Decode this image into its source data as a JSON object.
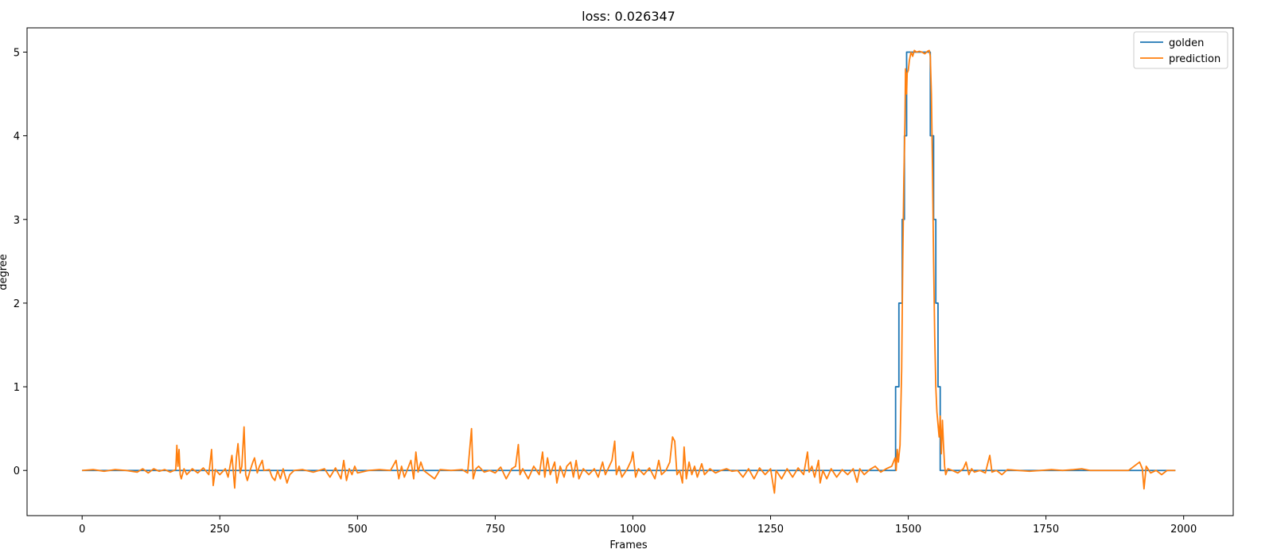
{
  "chart_data": {
    "type": "line",
    "title": "loss: 0.026347",
    "xlabel": "Frames",
    "ylabel": "degree",
    "xlim": [
      -100,
      2090
    ],
    "ylim": [
      -0.54,
      5.29
    ],
    "xticks": [
      0,
      250,
      500,
      750,
      1000,
      1250,
      1500,
      1750,
      2000
    ],
    "yticks": [
      0,
      1,
      2,
      3,
      4,
      5
    ],
    "grid": false,
    "legend_position": "top-right",
    "series": [
      {
        "name": "golden",
        "color": "#1f77b4",
        "step": true,
        "points": [
          [
            0,
            0
          ],
          [
            1477,
            0
          ],
          [
            1477,
            1
          ],
          [
            1483,
            1
          ],
          [
            1483,
            2
          ],
          [
            1489,
            2
          ],
          [
            1489,
            3
          ],
          [
            1493,
            3
          ],
          [
            1493,
            4
          ],
          [
            1497,
            4
          ],
          [
            1497,
            5
          ],
          [
            1540,
            5
          ],
          [
            1540,
            4
          ],
          [
            1546,
            4
          ],
          [
            1546,
            3
          ],
          [
            1550,
            3
          ],
          [
            1550,
            2
          ],
          [
            1554,
            2
          ],
          [
            1554,
            1
          ],
          [
            1558,
            1
          ],
          [
            1558,
            0
          ],
          [
            1985,
            0
          ]
        ]
      },
      {
        "name": "prediction",
        "color": "#ff7f0e",
        "step": false,
        "points": [
          [
            0,
            0
          ],
          [
            20,
            0.01
          ],
          [
            40,
            -0.01
          ],
          [
            60,
            0.01
          ],
          [
            80,
            0.0
          ],
          [
            100,
            -0.02
          ],
          [
            110,
            0.02
          ],
          [
            120,
            -0.03
          ],
          [
            130,
            0.02
          ],
          [
            140,
            -0.01
          ],
          [
            150,
            0.01
          ],
          [
            160,
            -0.02
          ],
          [
            170,
            0.01
          ],
          [
            172,
            0.3
          ],
          [
            174,
            0.05
          ],
          [
            176,
            0.25
          ],
          [
            178,
            -0.05
          ],
          [
            180,
            -0.1
          ],
          [
            185,
            0.02
          ],
          [
            190,
            -0.05
          ],
          [
            200,
            0.02
          ],
          [
            210,
            -0.03
          ],
          [
            220,
            0.03
          ],
          [
            230,
            -0.05
          ],
          [
            235,
            0.25
          ],
          [
            238,
            -0.18
          ],
          [
            242,
            0.01
          ],
          [
            250,
            -0.05
          ],
          [
            260,
            0.02
          ],
          [
            265,
            -0.08
          ],
          [
            272,
            0.18
          ],
          [
            277,
            -0.21
          ],
          [
            280,
            0.15
          ],
          [
            283,
            0.32
          ],
          [
            287,
            -0.03
          ],
          [
            290,
            0.05
          ],
          [
            294,
            0.52
          ],
          [
            297,
            -0.05
          ],
          [
            300,
            -0.12
          ],
          [
            305,
            0.0
          ],
          [
            310,
            0.1
          ],
          [
            313,
            0.15
          ],
          [
            318,
            -0.03
          ],
          [
            322,
            0.05
          ],
          [
            327,
            0.12
          ],
          [
            330,
            0.0
          ],
          [
            340,
            0.01
          ],
          [
            345,
            -0.08
          ],
          [
            350,
            -0.12
          ],
          [
            355,
            0.0
          ],
          [
            360,
            -0.1
          ],
          [
            365,
            0.02
          ],
          [
            372,
            -0.15
          ],
          [
            377,
            -0.05
          ],
          [
            385,
            0.0
          ],
          [
            400,
            0.01
          ],
          [
            420,
            -0.02
          ],
          [
            440,
            0.02
          ],
          [
            450,
            -0.08
          ],
          [
            460,
            0.03
          ],
          [
            470,
            -0.1
          ],
          [
            475,
            0.12
          ],
          [
            480,
            -0.12
          ],
          [
            485,
            0.02
          ],
          [
            490,
            -0.05
          ],
          [
            495,
            0.05
          ],
          [
            500,
            -0.03
          ],
          [
            520,
            0.0
          ],
          [
            540,
            0.01
          ],
          [
            560,
            0.0
          ],
          [
            570,
            0.12
          ],
          [
            575,
            -0.1
          ],
          [
            580,
            0.05
          ],
          [
            585,
            -0.08
          ],
          [
            590,
            0.0
          ],
          [
            597,
            0.12
          ],
          [
            602,
            -0.1
          ],
          [
            606,
            0.22
          ],
          [
            610,
            -0.02
          ],
          [
            615,
            0.1
          ],
          [
            620,
            0.0
          ],
          [
            630,
            -0.05
          ],
          [
            640,
            -0.1
          ],
          [
            650,
            0.01
          ],
          [
            670,
            0.0
          ],
          [
            690,
            0.01
          ],
          [
            700,
            -0.03
          ],
          [
            707,
            0.5
          ],
          [
            710,
            -0.1
          ],
          [
            715,
            0.02
          ],
          [
            720,
            0.05
          ],
          [
            730,
            -0.02
          ],
          [
            740,
            0.0
          ],
          [
            750,
            -0.03
          ],
          [
            760,
            0.04
          ],
          [
            770,
            -0.1
          ],
          [
            780,
            0.02
          ],
          [
            787,
            0.05
          ],
          [
            792,
            0.31
          ],
          [
            795,
            -0.05
          ],
          [
            800,
            0.02
          ],
          [
            810,
            -0.1
          ],
          [
            820,
            0.05
          ],
          [
            830,
            -0.05
          ],
          [
            836,
            0.22
          ],
          [
            840,
            -0.08
          ],
          [
            845,
            0.15
          ],
          [
            850,
            -0.05
          ],
          [
            858,
            0.1
          ],
          [
            862,
            -0.15
          ],
          [
            868,
            0.05
          ],
          [
            875,
            -0.08
          ],
          [
            880,
            0.05
          ],
          [
            887,
            0.1
          ],
          [
            892,
            -0.08
          ],
          [
            897,
            0.12
          ],
          [
            902,
            -0.1
          ],
          [
            910,
            0.02
          ],
          [
            920,
            -0.05
          ],
          [
            930,
            0.02
          ],
          [
            937,
            -0.08
          ],
          [
            945,
            0.1
          ],
          [
            950,
            -0.05
          ],
          [
            955,
            0.02
          ],
          [
            962,
            0.12
          ],
          [
            967,
            0.35
          ],
          [
            970,
            -0.05
          ],
          [
            975,
            0.05
          ],
          [
            980,
            -0.08
          ],
          [
            990,
            0.02
          ],
          [
            997,
            0.12
          ],
          [
            1000,
            0.22
          ],
          [
            1005,
            -0.08
          ],
          [
            1010,
            0.02
          ],
          [
            1020,
            -0.05
          ],
          [
            1030,
            0.03
          ],
          [
            1040,
            -0.1
          ],
          [
            1047,
            0.12
          ],
          [
            1052,
            -0.05
          ],
          [
            1060,
            0.0
          ],
          [
            1067,
            0.1
          ],
          [
            1072,
            0.4
          ],
          [
            1076,
            0.35
          ],
          [
            1080,
            -0.05
          ],
          [
            1085,
            0.0
          ],
          [
            1090,
            -0.15
          ],
          [
            1093,
            0.28
          ],
          [
            1097,
            -0.1
          ],
          [
            1102,
            0.1
          ],
          [
            1107,
            -0.05
          ],
          [
            1112,
            0.05
          ],
          [
            1117,
            -0.08
          ],
          [
            1125,
            0.08
          ],
          [
            1130,
            -0.05
          ],
          [
            1140,
            0.02
          ],
          [
            1150,
            -0.03
          ],
          [
            1160,
            0.0
          ],
          [
            1170,
            0.02
          ],
          [
            1180,
            -0.01
          ],
          [
            1190,
            0.0
          ],
          [
            1200,
            -0.08
          ],
          [
            1210,
            0.02
          ],
          [
            1220,
            -0.1
          ],
          [
            1230,
            0.03
          ],
          [
            1240,
            -0.05
          ],
          [
            1250,
            0.02
          ],
          [
            1257,
            -0.27
          ],
          [
            1260,
            0.0
          ],
          [
            1270,
            -0.1
          ],
          [
            1280,
            0.02
          ],
          [
            1290,
            -0.08
          ],
          [
            1300,
            0.03
          ],
          [
            1310,
            -0.05
          ],
          [
            1317,
            0.22
          ],
          [
            1320,
            -0.02
          ],
          [
            1325,
            0.05
          ],
          [
            1330,
            -0.08
          ],
          [
            1337,
            0.12
          ],
          [
            1340,
            -0.15
          ],
          [
            1345,
            0.0
          ],
          [
            1352,
            -0.1
          ],
          [
            1360,
            0.02
          ],
          [
            1370,
            -0.08
          ],
          [
            1380,
            0.01
          ],
          [
            1390,
            -0.05
          ],
          [
            1400,
            0.02
          ],
          [
            1407,
            -0.14
          ],
          [
            1412,
            0.02
          ],
          [
            1420,
            -0.05
          ],
          [
            1430,
            0.01
          ],
          [
            1440,
            0.05
          ],
          [
            1450,
            -0.02
          ],
          [
            1460,
            0.02
          ],
          [
            1470,
            0.05
          ],
          [
            1476,
            0.15
          ],
          [
            1478,
            0.0
          ],
          [
            1480,
            0.25
          ],
          [
            1482,
            0.1
          ],
          [
            1485,
            0.3
          ],
          [
            1488,
            1.2
          ],
          [
            1490,
            2.5
          ],
          [
            1492,
            3.5
          ],
          [
            1494,
            4.2
          ],
          [
            1495,
            4.8
          ],
          [
            1497,
            4.5
          ],
          [
            1498,
            4.75
          ],
          [
            1500,
            4.78
          ],
          [
            1502,
            4.9
          ],
          [
            1505,
            5.0
          ],
          [
            1508,
            4.95
          ],
          [
            1511,
            5.02
          ],
          [
            1515,
            5.0
          ],
          [
            1520,
            5.01
          ],
          [
            1525,
            5.0
          ],
          [
            1530,
            4.98
          ],
          [
            1535,
            5.01
          ],
          [
            1538,
            5.02
          ],
          [
            1540,
            4.95
          ],
          [
            1542,
            4.5
          ],
          [
            1544,
            3.6
          ],
          [
            1546,
            2.5
          ],
          [
            1548,
            1.6
          ],
          [
            1550,
            1.0
          ],
          [
            1552,
            0.7
          ],
          [
            1554,
            0.55
          ],
          [
            1556,
            0.4
          ],
          [
            1558,
            0.65
          ],
          [
            1560,
            0.2
          ],
          [
            1562,
            0.6
          ],
          [
            1564,
            0.3
          ],
          [
            1566,
            0.05
          ],
          [
            1568,
            -0.05
          ],
          [
            1572,
            0.02
          ],
          [
            1580,
            0.0
          ],
          [
            1590,
            -0.03
          ],
          [
            1600,
            0.02
          ],
          [
            1605,
            0.1
          ],
          [
            1610,
            -0.05
          ],
          [
            1615,
            0.02
          ],
          [
            1620,
            -0.02
          ],
          [
            1630,
            0.0
          ],
          [
            1640,
            -0.03
          ],
          [
            1648,
            0.18
          ],
          [
            1652,
            -0.02
          ],
          [
            1660,
            0.0
          ],
          [
            1670,
            -0.05
          ],
          [
            1680,
            0.01
          ],
          [
            1700,
            0.0
          ],
          [
            1720,
            -0.01
          ],
          [
            1740,
            0.0
          ],
          [
            1760,
            0.01
          ],
          [
            1780,
            0.0
          ],
          [
            1800,
            0.01
          ],
          [
            1815,
            0.02
          ],
          [
            1830,
            0.0
          ],
          [
            1860,
            0.0
          ],
          [
            1900,
            0.0
          ],
          [
            1920,
            0.1
          ],
          [
            1925,
            0.02
          ],
          [
            1928,
            -0.22
          ],
          [
            1932,
            0.05
          ],
          [
            1940,
            -0.03
          ],
          [
            1950,
            0.0
          ],
          [
            1960,
            -0.05
          ],
          [
            1970,
            0.0
          ],
          [
            1985,
            0.0
          ]
        ]
      }
    ]
  }
}
